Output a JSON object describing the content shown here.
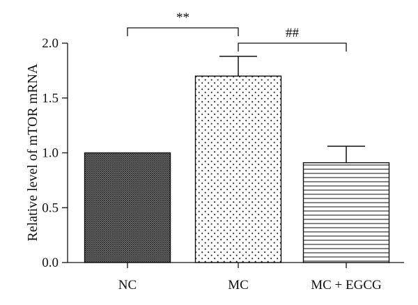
{
  "chart_data": {
    "type": "bar",
    "title": "",
    "xlabel": "",
    "ylabel": "Relative level of mTOR mRNA",
    "ylim": [
      0,
      2.0
    ],
    "yticks": [
      "0.0",
      "0.5",
      "1.0",
      "1.5",
      "2.0"
    ],
    "categories": [
      "NC",
      "MC",
      "MC + EGCG"
    ],
    "values": [
      1.0,
      1.7,
      0.91
    ],
    "error_bars": [
      0,
      0.18,
      0.15
    ],
    "bar_fill_patterns": [
      "crosshatch",
      "dots",
      "horizontal-lines"
    ],
    "grid": false,
    "significance": [
      {
        "label": "**",
        "from": "NC",
        "to": "MC"
      },
      {
        "label": "##",
        "from": "MC",
        "to": "MC + EGCG"
      }
    ]
  }
}
